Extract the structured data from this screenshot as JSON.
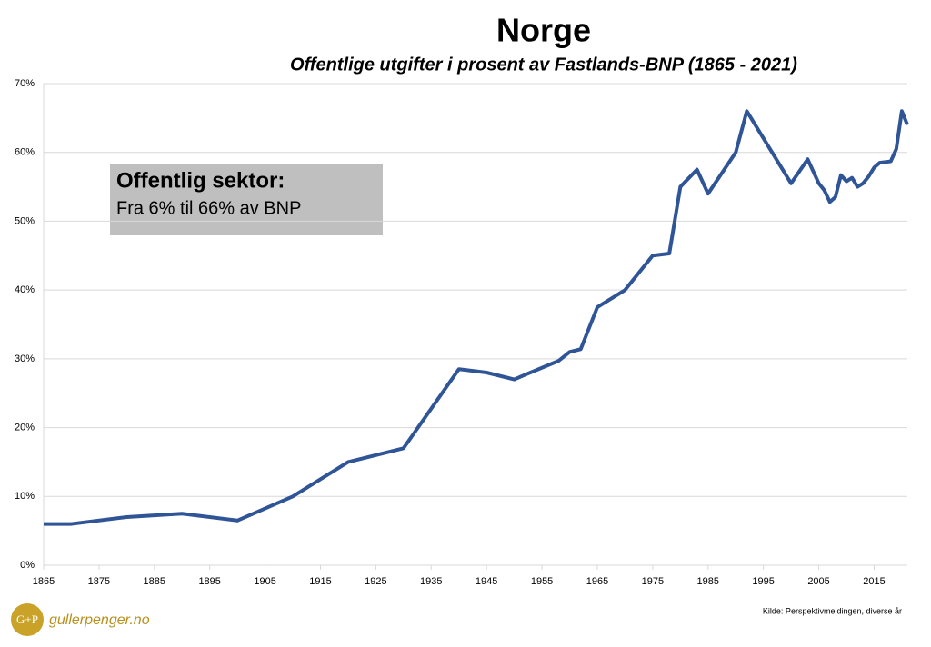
{
  "chart_data": {
    "type": "line",
    "title": "Norge",
    "subtitle": "Offentlige utgifter i prosent av Fastlands-BNP (1865 - 2021)",
    "annotation": [
      "Offentlig sektor:",
      "Fra 6% til 66% av BNP"
    ],
    "source": "Kilde: Perspektivmeldingen, diverse år",
    "logo": {
      "mark": "G+P",
      "text": "gullerpenger.no"
    },
    "x": [
      1865,
      1870,
      1880,
      1890,
      1900,
      1910,
      1920,
      1930,
      1940,
      1945,
      1950,
      1952,
      1958,
      1960,
      1962,
      1965,
      1970,
      1975,
      1978,
      1980,
      1983,
      1985,
      1990,
      1992,
      2000,
      2003,
      2005,
      2006,
      2007,
      2008,
      2009,
      2010,
      2011,
      2012,
      2013,
      2014,
      2015,
      2016,
      2018,
      2019,
      2020,
      2021
    ],
    "values": [
      6,
      6,
      7,
      7.5,
      6.5,
      10,
      15,
      17,
      28.5,
      28,
      27,
      27.7,
      29.7,
      31,
      31.4,
      37.5,
      40,
      45,
      45.3,
      55,
      57.5,
      54,
      60,
      66,
      55.5,
      59,
      55.5,
      54.5,
      52.8,
      53.5,
      56.7,
      55.8,
      56.3,
      55,
      55.5,
      56.5,
      57.8,
      58.5,
      58.7,
      60.5,
      66,
      64
    ],
    "color": "#2f5597",
    "xlim": [
      1865,
      2021
    ],
    "xticks": [
      1865,
      1875,
      1885,
      1895,
      1905,
      1915,
      1925,
      1935,
      1945,
      1955,
      1965,
      1975,
      1985,
      1995,
      2005,
      2015
    ],
    "ylim": [
      0,
      70
    ],
    "yticks": [
      {
        "value": 0,
        "label": "0%"
      },
      {
        "value": 10,
        "label": "10%"
      },
      {
        "value": 20,
        "label": "20%"
      },
      {
        "value": 30,
        "label": "30%"
      },
      {
        "value": 40,
        "label": "40%"
      },
      {
        "value": 50,
        "label": "50%"
      },
      {
        "value": 60,
        "label": "60%"
      },
      {
        "value": 70,
        "label": "70%"
      }
    ],
    "grid": true
  }
}
